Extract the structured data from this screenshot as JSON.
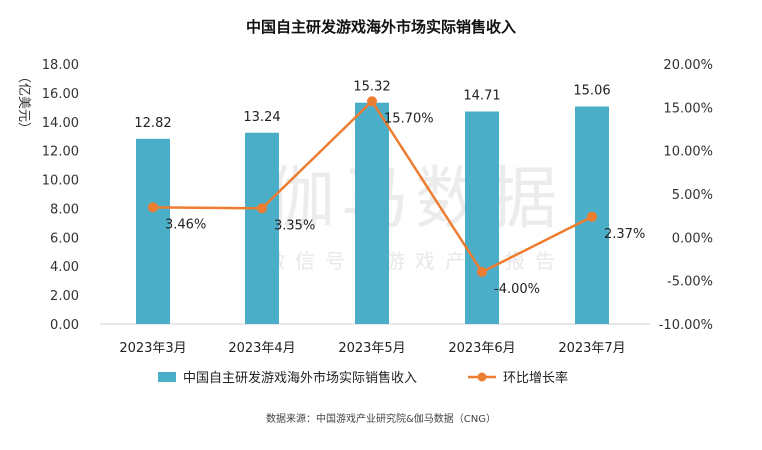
{
  "chart_data": {
    "type": "bar+line",
    "title": "中国自主研发游戏海外市场实际销售收入",
    "categories": [
      "2023年3月",
      "2023年4月",
      "2023年5月",
      "2023年6月",
      "2023年7月"
    ],
    "bar_series": {
      "name": "中国自主研发游戏海外市场实际销售收入",
      "values": [
        12.82,
        13.24,
        15.32,
        14.71,
        15.06
      ],
      "labels": [
        "12.82",
        "13.24",
        "15.32",
        "14.71",
        "15.06"
      ],
      "color": "#4aaec8"
    },
    "line_series": {
      "name": "环比增长率",
      "values": [
        3.46,
        3.35,
        15.7,
        -4.0,
        2.37
      ],
      "labels": [
        "3.46%",
        "3.35%",
        "15.70%",
        "-4.00%",
        "2.37%"
      ],
      "color": "#ed7d31"
    },
    "y_left": {
      "label": "（亿美元）",
      "ylim": [
        0,
        18
      ],
      "ticks": [
        "0.00",
        "2.00",
        "4.00",
        "6.00",
        "8.00",
        "10.00",
        "12.00",
        "14.00",
        "16.00",
        "18.00"
      ]
    },
    "y_right": {
      "ylim": [
        -10,
        20
      ],
      "ticks": [
        "-10.00%",
        "-5.00%",
        "0.00%",
        "5.00%",
        "10.00%",
        "15.00%",
        "20.00%"
      ]
    },
    "legend_position": "bottom"
  },
  "watermark": {
    "main": "伽马数据",
    "sub": "微信号：游戏产业报告"
  },
  "source": "数据来源：中国游戏产业研究院&伽马数据（CNG）"
}
